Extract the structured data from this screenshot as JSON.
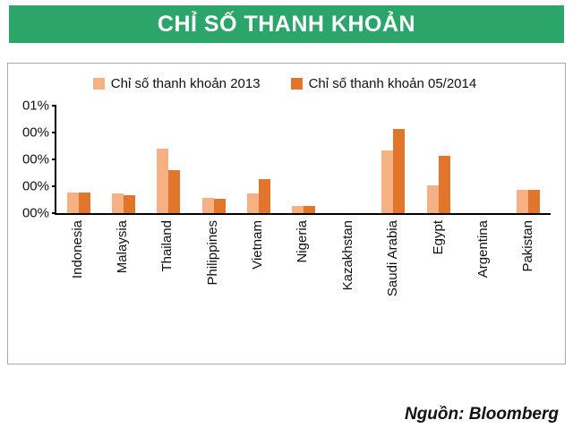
{
  "header": {
    "title": "CHỈ SỐ THANH KHOẢN",
    "background_color": "#2CA56A",
    "text_color": "#FFFFFF"
  },
  "source": {
    "label": "Nguồn: Bloomberg"
  },
  "chart_data": {
    "type": "bar",
    "title": "CHỈ SỐ THANH KHOẢN",
    "categories": [
      "Indonesia",
      "Malaysia",
      "Thailand",
      "Philippines",
      "Vietnam",
      "Nigeria",
      "Kazakhstan",
      "Saudi Arabia",
      "Egypt",
      "Argentina",
      "Pakistan"
    ],
    "series": [
      {
        "name": "Chỉ số thanh khoản 2013",
        "color": "#F5B183",
        "values": [
          0.19,
          0.18,
          0.6,
          0.14,
          0.18,
          0.07,
          0,
          0.58,
          0.26,
          0,
          0.22
        ]
      },
      {
        "name": "Chỉ số thanh khoản 05/2014",
        "color": "#E0752B",
        "values": [
          0.19,
          0.17,
          0.4,
          0.13,
          0.32,
          0.07,
          0,
          0.78,
          0.53,
          0,
          0.22
        ]
      }
    ],
    "ytick_labels": [
      "01%",
      "00%",
      "00%",
      "00%",
      "00%"
    ],
    "ylim": [
      0,
      1
    ],
    "xlabel": "",
    "ylabel": "",
    "grid": false,
    "legend_position": "top"
  }
}
